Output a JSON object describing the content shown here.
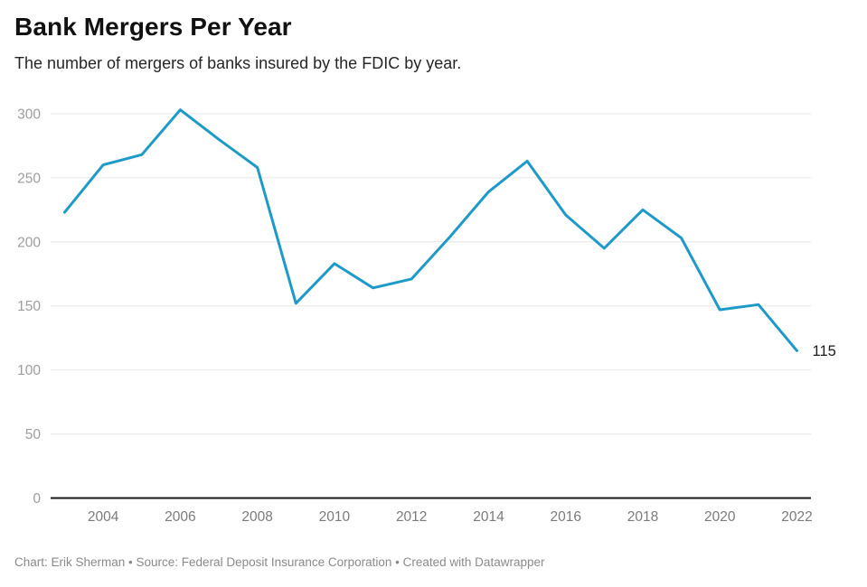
{
  "header": {
    "title": "Bank Mergers Per Year",
    "subtitle": "The number of mergers of banks insured by the FDIC by year."
  },
  "footer": {
    "text": "Chart: Erik Sherman • Source: Federal Deposit Insurance Corporation • Created with Datawrapper"
  },
  "chart_data": {
    "type": "line",
    "title": "Bank Mergers Per Year",
    "subtitle": "The number of mergers of banks insured by the FDIC by year.",
    "x": [
      2003,
      2004,
      2005,
      2006,
      2007,
      2008,
      2009,
      2010,
      2011,
      2012,
      2013,
      2014,
      2015,
      2016,
      2017,
      2018,
      2019,
      2020,
      2021,
      2022
    ],
    "values": [
      223,
      260,
      268,
      303,
      280,
      258,
      152,
      183,
      164,
      171,
      204,
      239,
      263,
      221,
      195,
      225,
      203,
      147,
      151,
      115
    ],
    "series_name": "Bank mergers",
    "end_label": "115",
    "xlabel": "",
    "ylabel": "",
    "ylim": [
      0,
      300
    ],
    "yticks": [
      0,
      50,
      100,
      150,
      200,
      250,
      300
    ],
    "xticks": [
      2004,
      2006,
      2008,
      2010,
      2012,
      2014,
      2016,
      2018,
      2020,
      2022
    ],
    "grid": "horizontal",
    "legend": "none",
    "colors": {
      "line": "#1e9ac9",
      "gridline": "#e6e6e6",
      "baseline": "#1a1a1a",
      "y_tick_label": "#9d9d9d",
      "x_tick_label": "#7b7b7b",
      "end_label": "#1a1a1a"
    }
  }
}
